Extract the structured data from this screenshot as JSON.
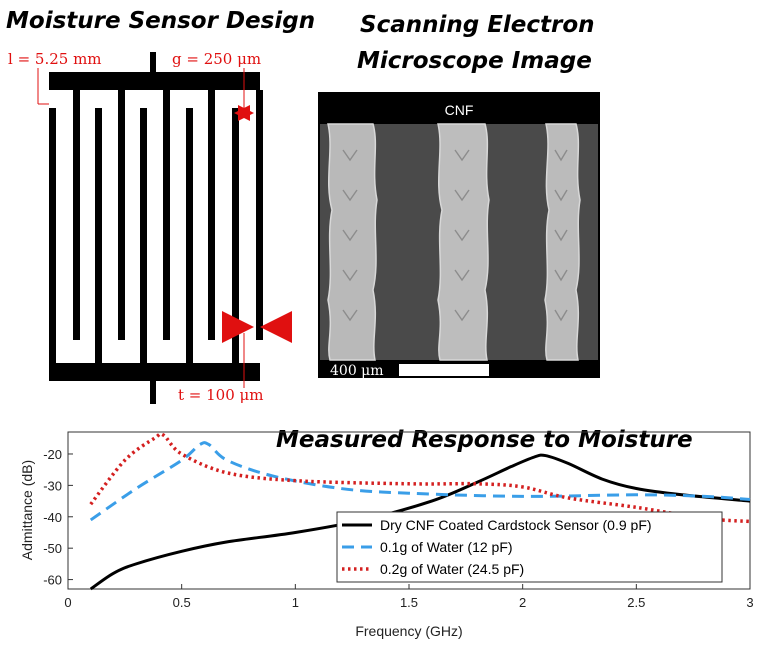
{
  "headings": {
    "design": "Moisture Sensor Design",
    "sem_line1": "Scanning Electron",
    "sem_line2": "Microscope Image",
    "response": "Measured Response to Moisture"
  },
  "design_annotations": {
    "length": "l = 5.25 mm",
    "gap": "g = 250 μm",
    "thickness": "t = 100 μm",
    "accent_color": "#e01010"
  },
  "sem": {
    "label": "CNF",
    "scale_bar": "400 μm"
  },
  "chart_data": {
    "type": "line",
    "title": "Measured Response to Moisture",
    "xlabel": "Frequency (GHz)",
    "ylabel": "Admittance (dB)",
    "xlim": [
      0,
      3
    ],
    "ylim": [
      -63,
      -13
    ],
    "xticks": [
      0,
      0.5,
      1,
      1.5,
      2,
      2.5,
      3
    ],
    "xtick_labels": [
      "0",
      "0.5",
      "1",
      "1.5",
      "2",
      "2.5",
      "3"
    ],
    "yticks": [
      -60,
      -50,
      -40,
      -30,
      -20
    ],
    "ytick_labels": [
      "-60",
      "-50",
      "-40",
      "-30",
      "-20"
    ],
    "grid": false,
    "legend_position": "lower-right",
    "series": [
      {
        "name": "Dry CNF Coated Cardstock Sensor (0.9 pF)",
        "color": "#000000",
        "style": "solid",
        "x": [
          0.1,
          0.2,
          0.3,
          0.5,
          0.7,
          1.0,
          1.3,
          1.6,
          1.8,
          1.95,
          2.05,
          2.1,
          2.2,
          2.35,
          2.5,
          2.7,
          3.0
        ],
        "y": [
          -63,
          -58,
          -55,
          -51,
          -48,
          -45,
          -41,
          -35,
          -29,
          -24,
          -21,
          -20.5,
          -23,
          -28,
          -31,
          -33,
          -35
        ]
      },
      {
        "name": "0.1g of Water (12 pF)",
        "color": "#3a9ee8",
        "style": "dashed",
        "x": [
          0.1,
          0.3,
          0.5,
          0.58,
          0.62,
          0.7,
          0.9,
          1.2,
          1.5,
          2.0,
          2.5,
          2.8,
          3.0
        ],
        "y": [
          -41,
          -31,
          -22,
          -17,
          -17,
          -22,
          -27,
          -31,
          -32.5,
          -33.5,
          -33,
          -33.5,
          -34.5
        ]
      },
      {
        "name": "0.2g of Water (24.5 pF)",
        "color": "#d42020",
        "style": "dotted",
        "x": [
          0.1,
          0.25,
          0.38,
          0.42,
          0.5,
          0.7,
          1.0,
          1.5,
          1.8,
          2.0,
          2.2,
          2.5,
          2.8,
          3.0
        ],
        "y": [
          -36,
          -22,
          -15,
          -14,
          -20,
          -26,
          -28.5,
          -29.5,
          -29.5,
          -30.5,
          -34,
          -37,
          -40.5,
          -41.5
        ]
      }
    ]
  }
}
